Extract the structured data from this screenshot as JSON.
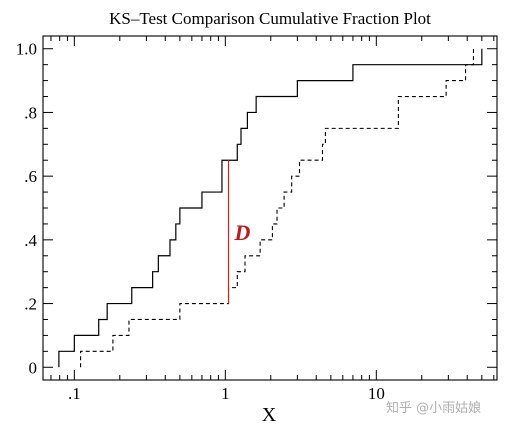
{
  "chart_data": {
    "type": "line",
    "title": "KS–Test Comparison Cumulative Fraction Plot",
    "xlabel": "X",
    "ylabel": "",
    "xscale": "log",
    "xlim": [
      0.062,
      63
    ],
    "ylim": [
      -0.04,
      1.04
    ],
    "x_ticks": [
      {
        "value": 0.1,
        "label": ".1"
      },
      {
        "value": 1,
        "label": "1"
      },
      {
        "value": 10,
        "label": "10"
      }
    ],
    "y_ticks": [
      {
        "value": 0,
        "label": "0"
      },
      {
        "value": 0.2,
        "label": ".2"
      },
      {
        "value": 0.4,
        "label": ".4"
      },
      {
        "value": 0.6,
        "label": ".6"
      },
      {
        "value": 0.8,
        "label": ".8"
      },
      {
        "value": 1.0,
        "label": "1.0"
      }
    ],
    "grid": false,
    "series": [
      {
        "style": "solid",
        "x": [
          0.079,
          0.1,
          0.145,
          0.165,
          0.24,
          0.33,
          0.36,
          0.43,
          0.47,
          0.5,
          0.7,
          0.95,
          1.2,
          1.27,
          1.4,
          1.6,
          1.7,
          1.8,
          3.0,
          7.0,
          50.0
        ],
        "y": [
          0.05,
          0.1,
          0.15,
          0.2,
          0.25,
          0.3,
          0.35,
          0.4,
          0.45,
          0.5,
          0.55,
          0.65,
          0.7,
          0.75,
          0.8,
          0.85,
          0.85,
          0.85,
          0.9,
          0.95,
          1.0
        ]
      },
      {
        "style": "dashed",
        "x": [
          0.11,
          0.18,
          0.23,
          0.5,
          0.6,
          1.05,
          1.2,
          1.35,
          1.7,
          2.05,
          2.2,
          2.45,
          2.6,
          2.75,
          3.1,
          4.4,
          4.6,
          14.0,
          29.0,
          39.0,
          44.0
        ],
        "y": [
          0.05,
          0.1,
          0.15,
          0.2,
          0.2,
          0.25,
          0.3,
          0.35,
          0.4,
          0.45,
          0.5,
          0.55,
          0.55,
          0.6,
          0.65,
          0.7,
          0.75,
          0.85,
          0.9,
          0.95,
          1.0
        ]
      }
    ],
    "annotations": [
      {
        "text": "D",
        "x": 1.05,
        "y_from": 0.2,
        "y_to": 0.65,
        "color": "#d42020"
      }
    ],
    "watermark": "知乎 @小雨姑娘"
  }
}
